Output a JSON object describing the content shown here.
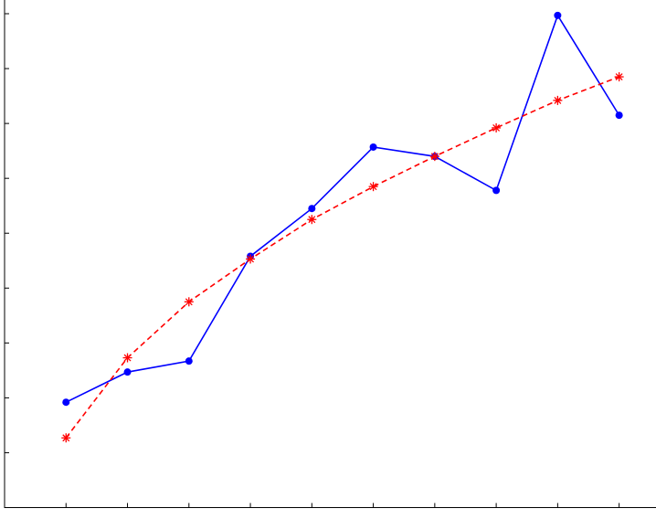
{
  "chart_data": {
    "type": "line",
    "x": [
      1,
      2,
      3,
      4,
      5,
      6,
      7,
      8,
      9,
      10
    ],
    "xlim": [
      0,
      10.6
    ],
    "xticks": [
      1,
      2,
      3,
      4,
      5,
      6,
      7,
      8,
      9,
      10
    ],
    "ylim": [
      0,
      9.25
    ],
    "yticks": [
      1,
      2,
      3,
      4,
      5,
      6,
      7,
      8,
      9
    ],
    "grid": false,
    "series": [
      {
        "color": "#0000ff",
        "linestyle": "solid",
        "marker": "circle",
        "values": [
          1.92,
          2.47,
          2.67,
          4.58,
          5.45,
          6.57,
          6.4,
          5.78,
          8.97,
          7.15
        ]
      },
      {
        "color": "#ff0000",
        "linestyle": "dashed",
        "marker": "asterisk",
        "values": [
          1.27,
          2.73,
          3.75,
          4.53,
          5.25,
          5.85,
          6.4,
          6.92,
          7.42,
          7.85
        ]
      }
    ]
  }
}
